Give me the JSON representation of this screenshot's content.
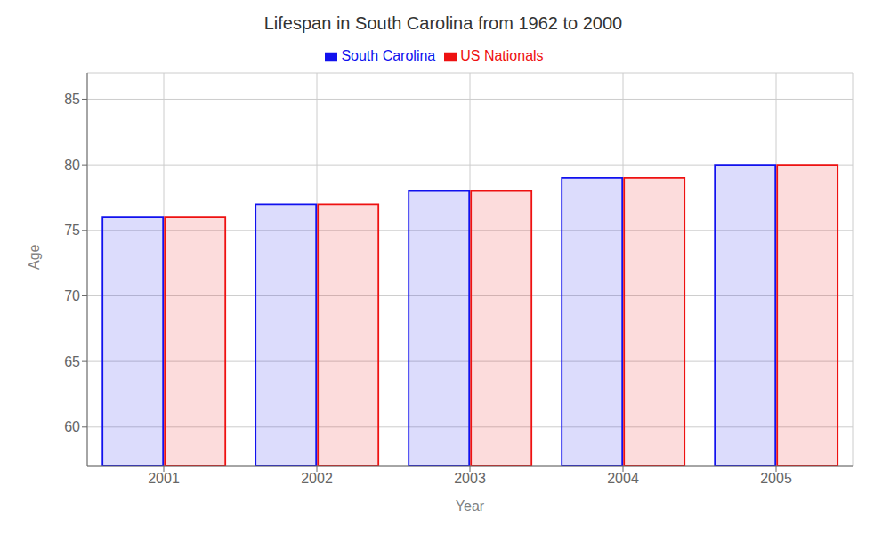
{
  "chart_data": {
    "type": "bar",
    "title": "Lifespan in South Carolina from 1962 to 2000",
    "x_label": "Year",
    "y_label": "Age",
    "categories": [
      "2001",
      "2002",
      "2003",
      "2004",
      "2005"
    ],
    "series": [
      {
        "name": "South Carolina",
        "color": "#1111ee",
        "values": [
          76,
          77,
          78,
          79,
          80
        ]
      },
      {
        "name": "US Nationals",
        "color": "#ee1111",
        "values": [
          76,
          77,
          78,
          79,
          80
        ]
      }
    ],
    "ylim": [
      57,
      87
    ],
    "yticks": [
      60,
      65,
      70,
      75,
      80,
      85
    ],
    "grid": true,
    "legend": "top"
  }
}
